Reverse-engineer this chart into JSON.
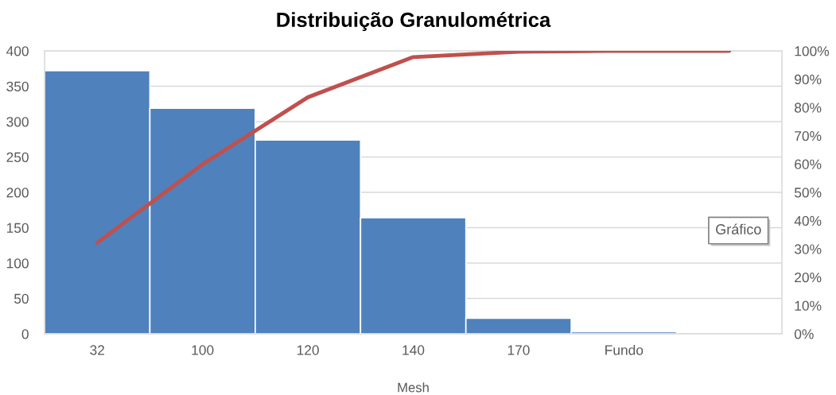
{
  "chart_data": {
    "type": "bar",
    "title": "Distribuição Granulométrica",
    "xlabel": "Mesh",
    "categories": [
      "32",
      "100",
      "120",
      "140",
      "170",
      "Fundo",
      null
    ],
    "series": [
      {
        "color": "#4f81bd",
        "values": [
          372,
          319,
          274,
          164,
          22,
          3,
          null
        ]
      },
      {
        "type": "line",
        "axis": "y2",
        "color": "#c0504d",
        "values": [
          32.2,
          59.9,
          83.6,
          97.8,
          99.7,
          100,
          100
        ]
      }
    ],
    "ylim": [
      0,
      400
    ],
    "yticks": [
      0,
      50,
      100,
      150,
      200,
      250,
      300,
      350,
      400
    ],
    "y2lim": [
      0,
      100
    ],
    "y2ticks": [
      {
        "value": 0,
        "label": "0%"
      },
      {
        "value": 10,
        "label": "10%"
      },
      {
        "value": 20,
        "label": "20%"
      },
      {
        "value": 30,
        "label": "30%"
      },
      {
        "value": 40,
        "label": "40%"
      },
      {
        "value": 50,
        "label": "50%"
      },
      {
        "value": 60,
        "label": "60%"
      },
      {
        "value": 70,
        "label": "70%"
      },
      {
        "value": 80,
        "label": "80%"
      },
      {
        "value": 90,
        "label": "90%"
      },
      {
        "value": 100,
        "label": "100%"
      }
    ],
    "grid": "y",
    "legend": false,
    "annotations": [
      "Gráfico"
    ]
  }
}
